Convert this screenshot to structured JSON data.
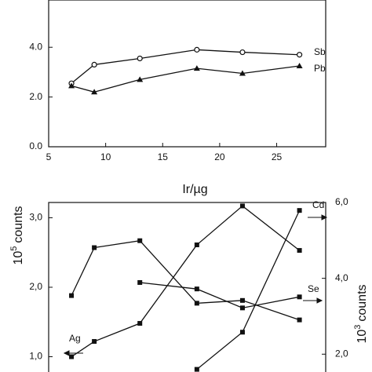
{
  "chart_data": [
    {
      "type": "line",
      "xlabel": "Ir/µg",
      "xlim": [
        5,
        29.3
      ],
      "xticks": [
        5,
        10,
        15,
        20,
        25
      ],
      "ylim": [
        0,
        5.9
      ],
      "yticks": [
        {
          "value": 0,
          "label": "0.0"
        },
        {
          "value": 2,
          "label": "2.0"
        },
        {
          "value": 4,
          "label": "4.0"
        }
      ],
      "x": [
        7,
        9,
        13,
        18,
        22,
        27
      ],
      "series": [
        {
          "name": "Sb",
          "color": "#111111",
          "marker": "circle-open",
          "values": [
            2.55,
            3.3,
            3.55,
            3.9,
            3.8,
            3.7
          ]
        },
        {
          "name": "Pb",
          "color": "#111111",
          "marker": "triangle",
          "values": [
            2.45,
            2.2,
            2.7,
            3.15,
            2.95,
            3.25
          ]
        }
      ]
    },
    {
      "type": "line",
      "ylabel_base": "10",
      "ylabel_exp": "5",
      "ylabel": "counts",
      "y2label_base": "10",
      "y2label_exp": "3",
      "y2label": "counts",
      "xlim": [
        5,
        29.3
      ],
      "ylim": [
        0.78,
        3.22
      ],
      "yticks": [
        {
          "value": 1,
          "label": "1,0"
        },
        {
          "value": 2,
          "label": "2,0"
        },
        {
          "value": 3,
          "label": "3,0"
        }
      ],
      "y2lim": [
        1.53,
        6.0
      ],
      "y2ticks": [
        {
          "value": 2,
          "label": "2,0"
        },
        {
          "value": 4,
          "label": "4,0"
        },
        {
          "value": 6,
          "label": "6,0"
        }
      ],
      "x": [
        7,
        9,
        13,
        18,
        22,
        27
      ],
      "series": [
        {
          "name": "Ag",
          "color": "#111111",
          "marker": "square",
          "values": [
            1.0,
            1.22,
            1.48,
            2.61,
            3.17,
            2.53
          ]
        },
        {
          "color": "#111111",
          "marker": "square",
          "values": [
            1.88,
            2.57,
            2.67,
            1.77,
            1.81,
            1.53
          ]
        },
        {
          "name": "Se",
          "color": "#111111",
          "marker": "square",
          "axis": "y2",
          "values": [
            null,
            null,
            3.89,
            3.72,
            3.22,
            3.51
          ]
        },
        {
          "name": "Cd",
          "color": "#111111",
          "marker": "square",
          "axis": "y2",
          "values": [
            null,
            null,
            null,
            1.6,
            2.58,
            5.79
          ]
        }
      ]
    }
  ]
}
